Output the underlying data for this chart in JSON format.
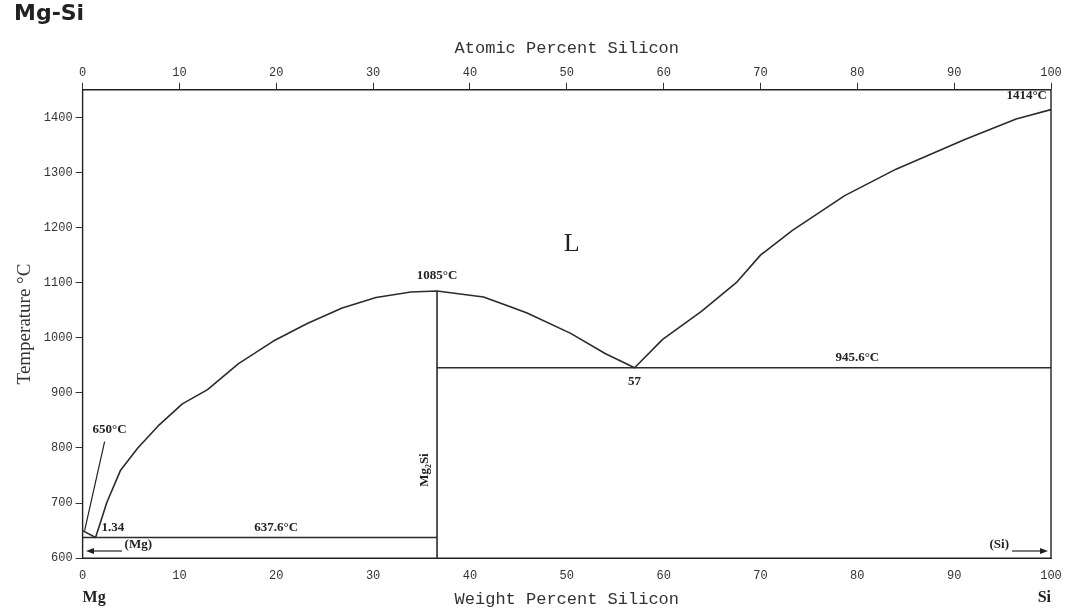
{
  "chart_data": {
    "type": "line",
    "title": "Mg-Si",
    "xlabel": "Weight Percent Silicon",
    "x2label": "Atomic Percent Silicon",
    "ylabel": "Temperature °C",
    "xlim": [
      0,
      100
    ],
    "xticks": [
      0,
      10,
      20,
      30,
      40,
      50,
      60,
      70,
      80,
      90,
      100
    ],
    "x2lim": [
      0,
      100
    ],
    "x2ticks": [
      0,
      10,
      20,
      30,
      40,
      50,
      60,
      70,
      80,
      90,
      100
    ],
    "ylim": [
      600,
      1450
    ],
    "yticks": [
      600,
      700,
      800,
      900,
      1000,
      1100,
      1200,
      1300,
      1400
    ],
    "grid": false,
    "legend": false,
    "marker": "none",
    "line_style": "solid",
    "series": [
      {
        "color": "#2b2b2b",
        "x": [
          0,
          1.34,
          2.5,
          3.9,
          5.7,
          7.8,
          10.3,
          12.9,
          16.1,
          19.7,
          23.2,
          26.8,
          30.3,
          33.9,
          36.6,
          41.4,
          45.9,
          50.4,
          54,
          57,
          59.9,
          63.9,
          67.5,
          70,
          73.3,
          78.7,
          84,
          91.1,
          96.4,
          100
        ],
        "values": [
          650,
          637.6,
          701,
          759,
          800,
          840,
          880,
          906,
          953,
          994,
          1026,
          1054,
          1073,
          1083,
          1085,
          1074,
          1045,
          1008,
          971,
          945.6,
          997,
          1048,
          1100,
          1150,
          1195,
          1258,
          1306,
          1360,
          1397,
          1414
        ]
      },
      {
        "color": "#2b2b2b",
        "x": [
          0,
          36.6
        ],
        "values": [
          637.6,
          637.6
        ]
      },
      {
        "color": "#2b2b2b",
        "x": [
          36.6,
          100
        ],
        "values": [
          945.6,
          945.6
        ]
      },
      {
        "color": "#2b2b2b",
        "x": [
          36.6,
          36.6
        ],
        "values": [
          600,
          1085
        ]
      }
    ],
    "annotations": [
      "L",
      {
        "text": "1085°C",
        "x": 36.6,
        "y": 1085
      },
      {
        "text": "945.6°C",
        "x": 80,
        "y": 945.6
      },
      {
        "text": "57",
        "x": 57,
        "y": 945.6
      },
      {
        "text": "1414°C",
        "x": 100,
        "y": 1414
      },
      {
        "text": "650°C",
        "x": 0,
        "y": 650
      },
      {
        "text": "1.34",
        "x": 1.34,
        "y": 637.6
      },
      {
        "text": "637.6°C",
        "x": 20,
        "y": 637.6
      },
      "(Mg)",
      "(Si)",
      {
        "text": "Mg₂Si",
        "x": 36.6,
        "y": 760
      },
      "Mg",
      "Si"
    ]
  }
}
